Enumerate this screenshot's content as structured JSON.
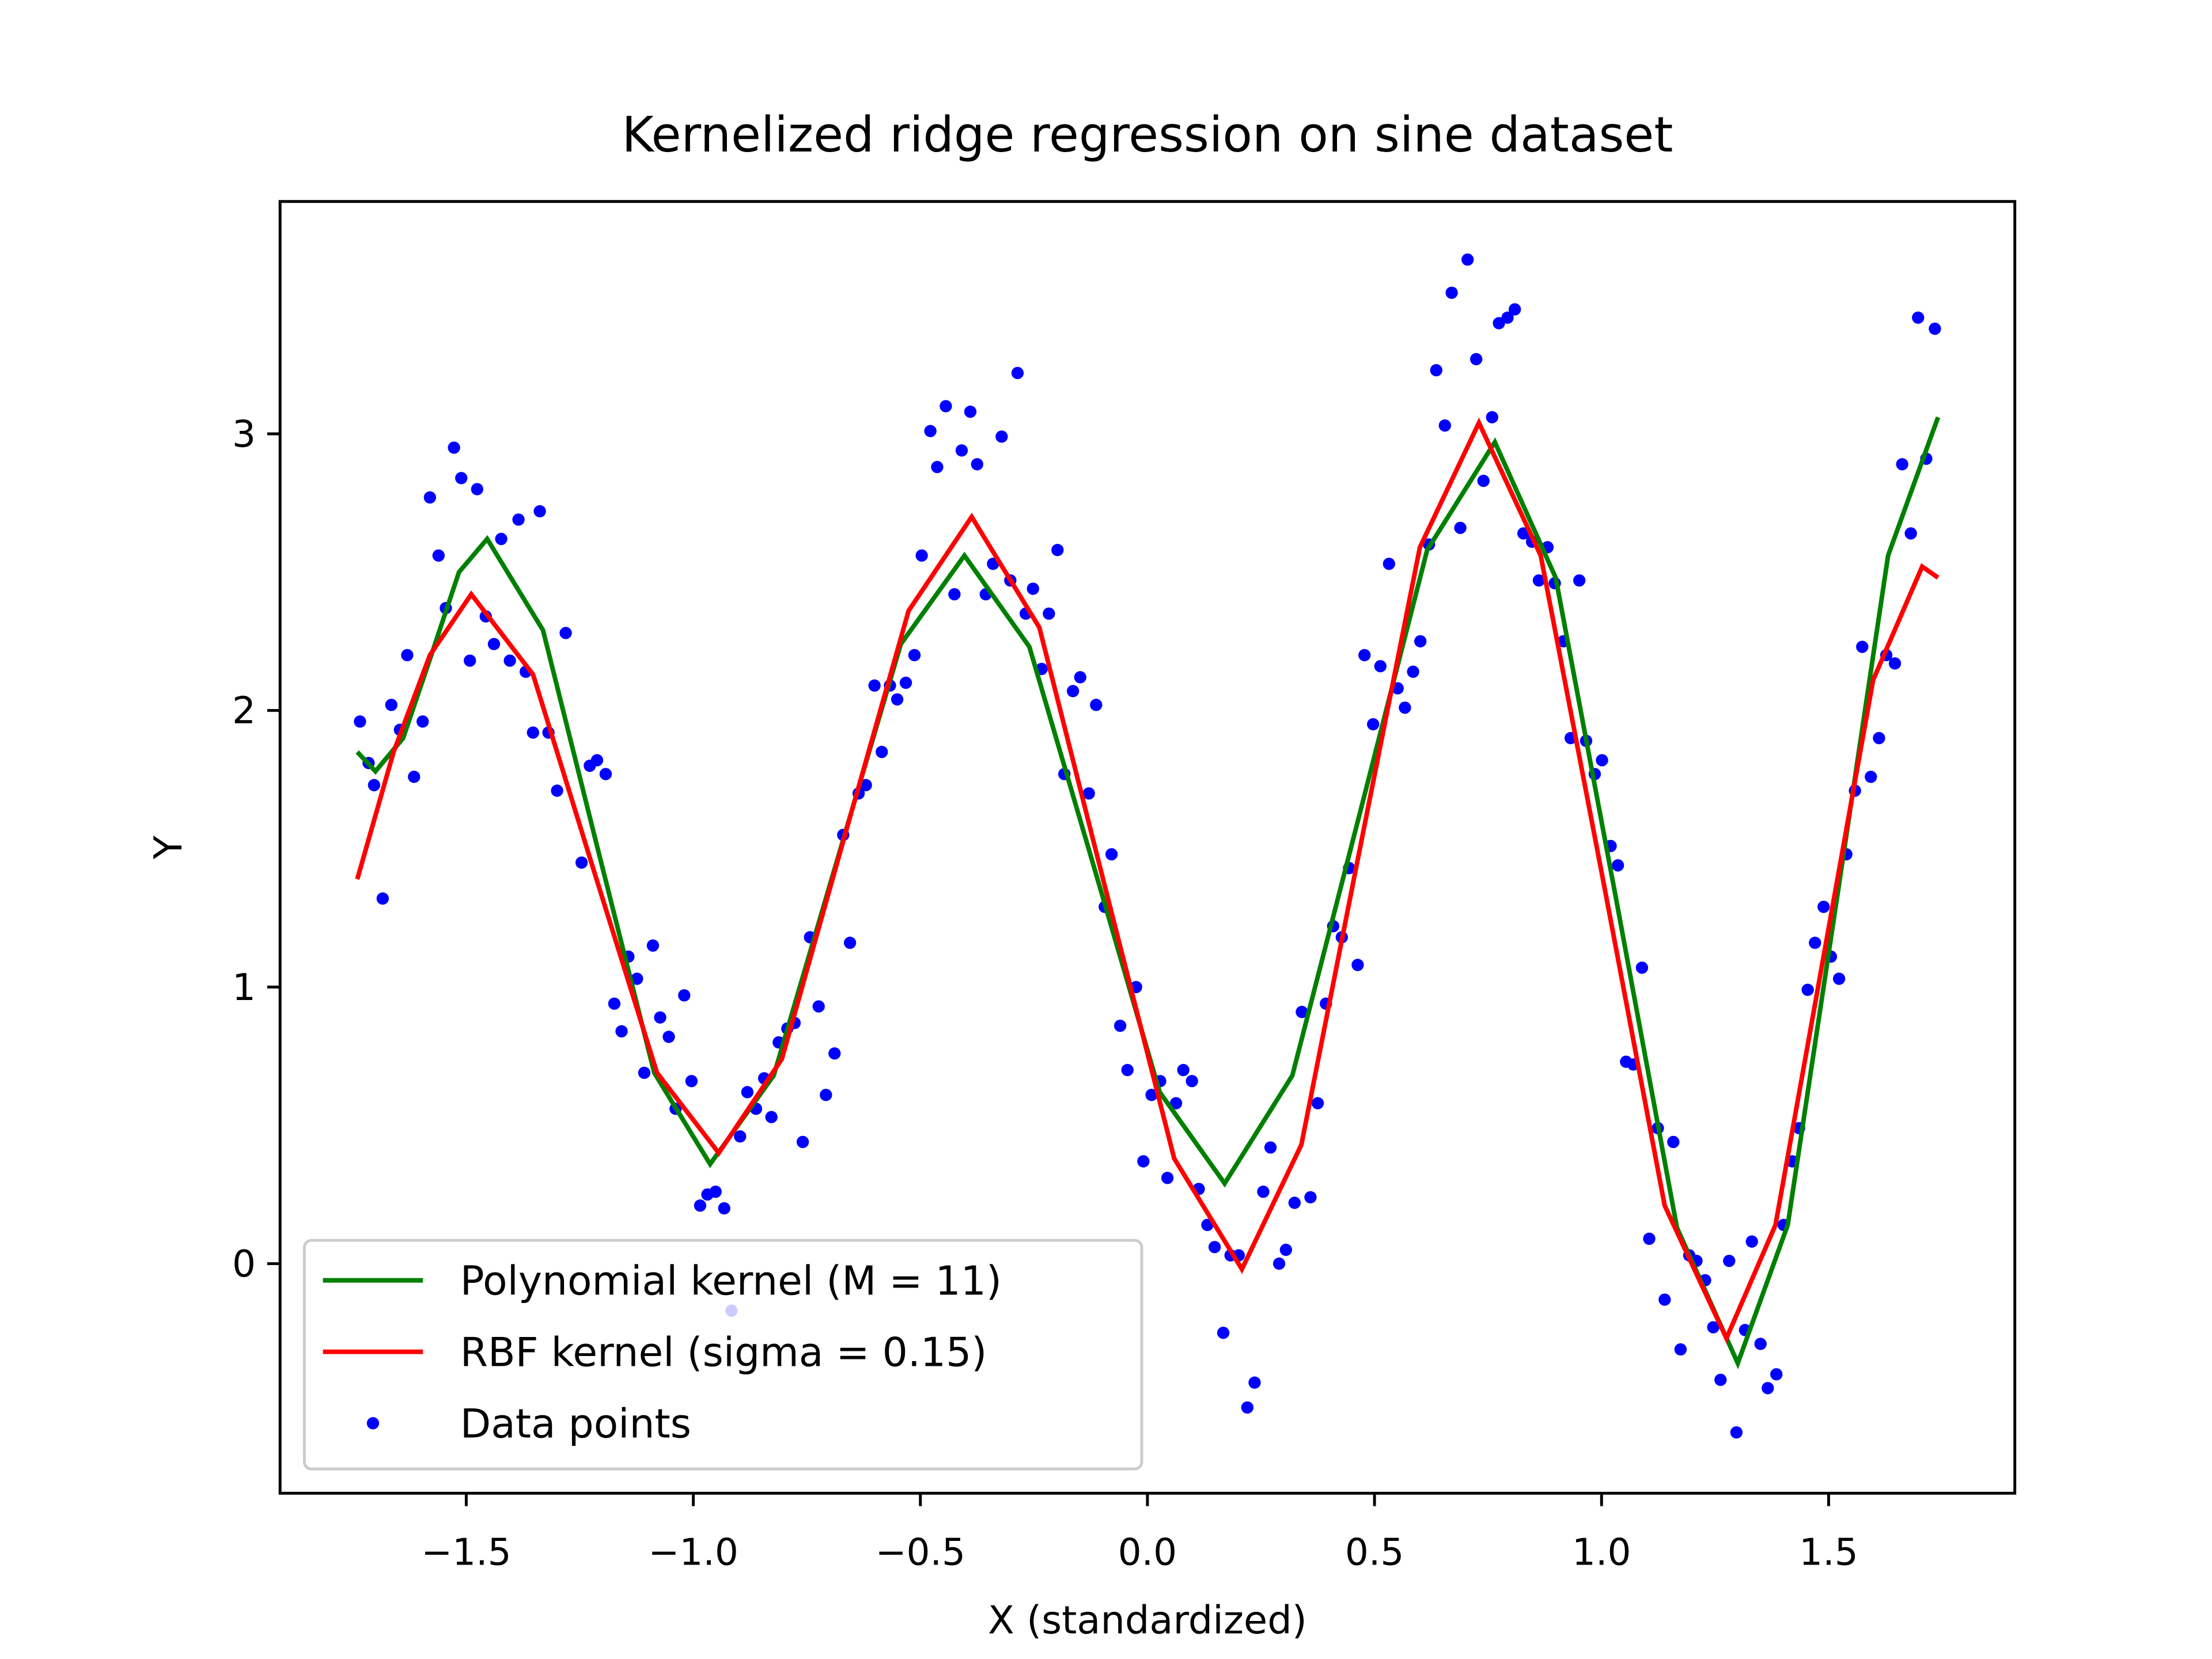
{
  "chart_data": {
    "type": "line",
    "title": "Kernelized ridge regression on sine dataset",
    "xlabel": "X (standardized)",
    "ylabel": "Y",
    "xlim": [
      -1.91,
      1.91
    ],
    "ylim": [
      -0.83,
      3.84
    ],
    "xticks": [
      {
        "value": -1.5,
        "label": "−1.5"
      },
      {
        "value": -1.0,
        "label": "−1.0"
      },
      {
        "value": -0.5,
        "label": "−0.5"
      },
      {
        "value": 0,
        "label": "0.0"
      },
      0.5,
      {
        "value": 1,
        "label": "1.0"
      },
      1.5
    ],
    "yticks": [
      0,
      1,
      2,
      3
    ],
    "grid": false,
    "legend": "lower left",
    "series": [
      {
        "name": "Polynomial kernel (M = 11)",
        "type": "line",
        "color": "#008000",
        "x": [
          -1.74,
          -1.7,
          -1.639,
          -1.577,
          -1.516,
          -1.454,
          -1.331,
          -1.209,
          -1.086,
          -0.963,
          -0.823,
          -0.683,
          -0.543,
          -0.403,
          -0.26,
          -0.117,
          0.027,
          0.17,
          0.319,
          0.468,
          0.616,
          0.765,
          0.899,
          1.033,
          1.166,
          1.3,
          1.41,
          1.521,
          1.631,
          1.741
        ],
        "values": [
          1.85,
          1.78,
          1.9,
          2.2,
          2.5,
          2.62,
          2.29,
          1.49,
          0.69,
          0.36,
          0.68,
          1.46,
          2.24,
          2.56,
          2.23,
          1.43,
          0.62,
          0.29,
          0.68,
          1.63,
          2.58,
          2.97,
          2.48,
          1.31,
          0.13,
          -0.36,
          0.14,
          1.35,
          2.56,
          3.06
        ]
      },
      {
        "name": "RBF kernel (sigma = 0.15)",
        "type": "line",
        "color": "#ff0000",
        "x": [
          -1.74,
          -1.66,
          -1.58,
          -1.489,
          -1.353,
          -1.217,
          -1.08,
          -0.944,
          -0.805,
          -0.666,
          -0.526,
          -0.387,
          -0.238,
          -0.09,
          0.059,
          0.208,
          0.339,
          0.469,
          0.6,
          0.73,
          0.866,
          1.003,
          1.139,
          1.275,
          1.383,
          1.491,
          1.598,
          1.706,
          1.741
        ],
        "values": [
          1.39,
          1.85,
          2.2,
          2.42,
          2.13,
          1.41,
          0.69,
          0.4,
          0.74,
          1.55,
          2.36,
          2.7,
          2.3,
          1.34,
          0.38,
          -0.02,
          0.43,
          1.51,
          2.59,
          3.04,
          2.56,
          1.39,
          0.21,
          -0.27,
          0.14,
          1.13,
          2.11,
          2.52,
          2.48
        ]
      },
      {
        "name": "Data points",
        "type": "scatter",
        "color": "#0000ff",
        "x": [
          -1.734,
          -1.715,
          -1.703,
          -1.684,
          -1.665,
          -1.646,
          -1.63,
          -1.615,
          -1.596,
          -1.58,
          -1.561,
          -1.545,
          -1.527,
          -1.511,
          -1.492,
          -1.476,
          -1.457,
          -1.439,
          -1.423,
          -1.404,
          -1.385,
          -1.369,
          -1.353,
          -1.338,
          -1.319,
          -1.3,
          -1.281,
          -1.246,
          -1.228,
          -1.212,
          -1.193,
          -1.174,
          -1.158,
          -1.143,
          -1.124,
          -1.108,
          -1.089,
          -1.073,
          -1.054,
          -1.039,
          -1.02,
          -1.004,
          -0.985,
          -0.969,
          -0.951,
          -0.932,
          -0.916,
          -0.897,
          -0.881,
          -0.862,
          -0.844,
          -0.828,
          -0.812,
          -0.793,
          -0.777,
          -0.759,
          -0.743,
          -0.724,
          -0.708,
          -0.689,
          -0.67,
          -0.655,
          -0.636,
          -0.62,
          -0.601,
          -0.585,
          -0.567,
          -0.551,
          -0.532,
          -0.513,
          -0.497,
          -0.478,
          -0.463,
          -0.444,
          -0.425,
          -0.409,
          -0.39,
          -0.375,
          -0.356,
          -0.34,
          -0.321,
          -0.302,
          -0.286,
          -0.268,
          -0.252,
          -0.233,
          -0.217,
          -0.198,
          -0.183,
          -0.164,
          -0.148,
          -0.129,
          -0.113,
          -0.094,
          -0.079,
          -0.06,
          -0.044,
          -0.025,
          -0.009,
          0.009,
          0.028,
          0.044,
          0.063,
          0.079,
          0.098,
          0.113,
          0.132,
          0.148,
          0.167,
          0.183,
          0.201,
          0.22,
          0.236,
          0.255,
          0.271,
          0.29,
          0.305,
          0.324,
          0.34,
          0.359,
          0.375,
          0.393,
          0.409,
          0.428,
          0.444,
          0.463,
          0.478,
          0.497,
          0.513,
          0.532,
          0.551,
          0.567,
          0.585,
          0.601,
          0.62,
          0.636,
          0.655,
          0.67,
          0.689,
          0.705,
          0.724,
          0.74,
          0.759,
          0.774,
          0.793,
          0.809,
          0.828,
          0.847,
          0.862,
          0.881,
          0.897,
          0.916,
          0.932,
          0.951,
          0.966,
          0.985,
          1.001,
          1.02,
          1.036,
          1.054,
          1.07,
          1.089,
          1.105,
          1.124,
          1.139,
          1.158,
          1.174,
          1.193,
          1.209,
          1.228,
          1.246,
          1.262,
          1.281,
          1.297,
          1.316,
          1.331,
          1.35,
          1.366,
          1.385,
          1.401,
          1.42,
          1.435,
          1.454,
          1.47,
          1.489,
          1.505,
          1.523,
          1.539,
          1.558,
          1.574,
          1.593,
          1.611,
          1.627,
          1.646,
          1.662,
          1.681,
          1.697,
          1.715,
          1.734
        ],
        "values": [
          1.96,
          1.81,
          1.73,
          1.32,
          2.02,
          1.93,
          2.2,
          1.76,
          1.96,
          2.77,
          2.56,
          2.37,
          2.95,
          2.84,
          2.18,
          2.8,
          2.34,
          2.24,
          2.62,
          2.18,
          2.69,
          2.14,
          1.92,
          2.72,
          1.92,
          1.71,
          2.28,
          1.45,
          1.8,
          1.82,
          1.77,
          0.94,
          0.84,
          1.11,
          1.03,
          0.69,
          1.15,
          0.89,
          0.82,
          0.56,
          0.97,
          0.66,
          0.21,
          0.25,
          0.26,
          0.2,
          -0.17,
          0.46,
          0.62,
          0.56,
          0.67,
          0.53,
          0.8,
          0.85,
          0.87,
          0.44,
          1.18,
          0.93,
          0.61,
          0.76,
          1.55,
          1.16,
          1.7,
          1.73,
          2.09,
          1.85,
          2.09,
          2.04,
          2.1,
          2.2,
          2.56,
          3.01,
          2.88,
          3.1,
          2.42,
          2.94,
          3.08,
          2.89,
          2.42,
          2.53,
          2.99,
          2.47,
          3.22,
          2.35,
          2.44,
          2.15,
          2.35,
          2.58,
          1.77,
          2.07,
          2.12,
          1.7,
          2.02,
          1.29,
          1.48,
          0.86,
          0.7,
          1.0,
          0.37,
          0.61,
          0.66,
          0.31,
          0.58,
          0.7,
          0.66,
          0.27,
          0.14,
          0.06,
          -0.25,
          0.03,
          0.03,
          -0.52,
          -0.43,
          0.26,
          0.42,
          0.0,
          0.05,
          0.22,
          0.91,
          0.24,
          0.58,
          0.94,
          1.22,
          1.18,
          1.43,
          1.08,
          2.2,
          1.95,
          2.16,
          2.53,
          2.08,
          2.01,
          2.14,
          2.25,
          2.6,
          3.23,
          3.03,
          3.51,
          2.66,
          3.63,
          3.27,
          2.83,
          3.06,
          3.4,
          3.42,
          3.45,
          2.64,
          2.61,
          2.47,
          2.59,
          2.46,
          2.25,
          1.9,
          2.47,
          1.89,
          1.77,
          1.82,
          1.51,
          1.44,
          0.73,
          0.72,
          1.07,
          0.09,
          0.49,
          -0.13,
          0.44,
          -0.31,
          0.03,
          0.01,
          -0.06,
          -0.23,
          -0.42,
          0.01,
          -0.61,
          -0.24,
          0.08,
          -0.29,
          -0.45,
          -0.4,
          0.14,
          0.37,
          0.49,
          0.99,
          1.16,
          1.29,
          1.11,
          1.03,
          1.48,
          1.71,
          2.23,
          1.76,
          1.9,
          2.2,
          2.17,
          2.89,
          2.64,
          3.42,
          2.91,
          3.38
        ]
      }
    ]
  }
}
